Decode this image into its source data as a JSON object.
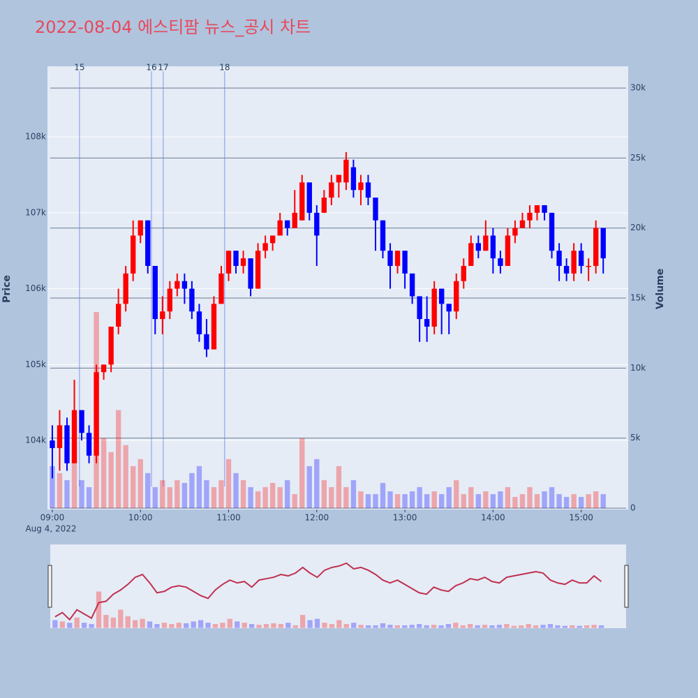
{
  "chart_data": {
    "type": "candlestick",
    "title": "2022-08-04 에스티팜 뉴스_공시 차트",
    "y_label": "Price",
    "y2_label": "Volume",
    "x_date_label": "Aug 4, 2022",
    "up_color": "#ff0000",
    "down_color": "#0000ff",
    "grid": true,
    "xlim": [
      -3.3,
      392
    ],
    "xticks": [
      {
        "value": 0,
        "label": "09:00"
      },
      {
        "value": 60,
        "label": "10:00"
      },
      {
        "value": 120,
        "label": "11:00"
      },
      {
        "value": 180,
        "label": "12:00"
      },
      {
        "value": 240,
        "label": "13:00"
      },
      {
        "value": 300,
        "label": "14:00"
      },
      {
        "value": 360,
        "label": "15:00"
      }
    ],
    "ylim": [
      103090,
      108930
    ],
    "yticks": [
      {
        "value": 104000,
        "label": "104k"
      },
      {
        "value": 105000,
        "label": "105k"
      },
      {
        "value": 106000,
        "label": "106k"
      },
      {
        "value": 107000,
        "label": "107k"
      },
      {
        "value": 108000,
        "label": "108k"
      }
    ],
    "y2lim": [
      -100,
      31550
    ],
    "y2ticks": [
      0,
      {
        "value": 5000,
        "label": "5k"
      },
      {
        "value": 10000,
        "label": "10k"
      },
      {
        "value": 15000,
        "label": "15k"
      },
      {
        "value": 20000,
        "label": "20k"
      },
      {
        "value": 25000,
        "label": "25k"
      },
      {
        "value": 30000,
        "label": "30k"
      }
    ],
    "news": [
      {
        "label": "15",
        "x": 18.5
      },
      {
        "label": "16",
        "x": 67.5
      },
      {
        "label": "17",
        "x": 75.5
      },
      {
        "label": "18",
        "x": 117.3
      }
    ],
    "x": [
      0,
      5,
      10,
      15,
      20,
      25,
      30,
      35,
      40,
      45,
      50,
      55,
      60,
      65,
      70,
      75,
      80,
      85,
      90,
      95,
      100,
      105,
      110,
      115,
      120,
      125,
      130,
      135,
      140,
      145,
      150,
      155,
      160,
      165,
      170,
      175,
      180,
      185,
      190,
      195,
      200,
      205,
      210,
      215,
      220,
      225,
      230,
      235,
      240,
      245,
      250,
      255,
      260,
      265,
      270,
      275,
      280,
      285,
      290,
      295,
      300,
      305,
      310,
      315,
      320,
      325,
      330,
      335,
      340,
      345,
      350,
      355,
      360,
      365,
      370,
      375
    ],
    "open": [
      104000,
      103900,
      104200,
      103700,
      104400,
      104100,
      103800,
      104900,
      105000,
      105500,
      105800,
      106200,
      106700,
      106900,
      106300,
      105600,
      105700,
      106000,
      106100,
      106000,
      105700,
      105400,
      105200,
      105800,
      106200,
      106500,
      106300,
      106400,
      106000,
      106500,
      106600,
      106700,
      106900,
      106800,
      106900,
      107400,
      107000,
      107000,
      107200,
      107400,
      107400,
      107600,
      107300,
      107400,
      107200,
      106900,
      106500,
      106300,
      106500,
      106200,
      105900,
      105600,
      105500,
      106000,
      105800,
      105700,
      106100,
      106300,
      106600,
      106500,
      106700,
      106400,
      106300,
      106700,
      106800,
      106900,
      107000,
      107100,
      107000,
      106500,
      106300,
      106200,
      106500,
      106300,
      106300,
      106800
    ],
    "high": [
      104200,
      104400,
      104300,
      104800,
      104400,
      104200,
      105000,
      105000,
      105500,
      106000,
      106300,
      106900,
      106900,
      106900,
      106300,
      105900,
      106100,
      106200,
      106200,
      106100,
      105800,
      105600,
      105900,
      106300,
      106500,
      106500,
      106500,
      106400,
      106600,
      106700,
      106700,
      107000,
      106900,
      107300,
      107500,
      107400,
      107100,
      107300,
      107500,
      107500,
      107800,
      107700,
      107500,
      107500,
      107200,
      106900,
      106600,
      106500,
      106500,
      106200,
      105900,
      105900,
      106100,
      106000,
      105800,
      106200,
      106400,
      106700,
      106700,
      106900,
      106800,
      106500,
      106800,
      106900,
      107000,
      107100,
      107100,
      107100,
      107000,
      106600,
      106400,
      106600,
      106600,
      106400,
      106900,
      106800
    ],
    "low": [
      103500,
      103600,
      103600,
      103700,
      104000,
      103700,
      103700,
      104800,
      104900,
      105400,
      105700,
      106100,
      106600,
      106200,
      105400,
      105400,
      105600,
      105900,
      105800,
      105600,
      105300,
      105100,
      105200,
      105800,
      106100,
      106200,
      106200,
      105900,
      106000,
      106400,
      106500,
      106700,
      106700,
      106800,
      106900,
      106900,
      106300,
      107000,
      107100,
      107200,
      107300,
      107200,
      107100,
      107100,
      106500,
      106400,
      106000,
      106200,
      106000,
      105800,
      105300,
      105300,
      105400,
      105400,
      105400,
      105600,
      106000,
      106300,
      106400,
      106500,
      106200,
      106200,
      106300,
      106600,
      106800,
      106800,
      106900,
      106900,
      106400,
      106100,
      106100,
      106100,
      106200,
      106100,
      106200,
      106200
    ],
    "close": [
      103900,
      104200,
      103700,
      104400,
      104100,
      103800,
      104900,
      105000,
      105500,
      105800,
      106200,
      106700,
      106900,
      106300,
      105600,
      105700,
      106000,
      106100,
      106000,
      105700,
      105400,
      105200,
      105800,
      106200,
      106500,
      106300,
      106400,
      106000,
      106500,
      106600,
      106700,
      106900,
      106800,
      107000,
      107400,
      107000,
      106700,
      107200,
      107400,
      107500,
      107700,
      107300,
      107400,
      107200,
      106900,
      106500,
      106300,
      106500,
      106200,
      105900,
      105600,
      105500,
      106000,
      105800,
      105700,
      106100,
      106300,
      106600,
      106500,
      106700,
      106400,
      106300,
      106700,
      106800,
      106900,
      107000,
      107100,
      107000,
      106500,
      106300,
      106200,
      106500,
      106300,
      106300,
      106800,
      106400
    ],
    "volume": [
      3000,
      2500,
      2000,
      4000,
      2000,
      1500,
      14000,
      5000,
      4000,
      7000,
      4500,
      3000,
      3500,
      2500,
      1500,
      2000,
      1500,
      2000,
      1800,
      2500,
      3000,
      2000,
      1500,
      2000,
      3500,
      2500,
      2000,
      1500,
      1200,
      1500,
      1800,
      1500,
      2000,
      1000,
      5000,
      3000,
      3500,
      2000,
      1500,
      3000,
      1500,
      2000,
      1200,
      1000,
      1000,
      1800,
      1200,
      1000,
      1000,
      1200,
      1500,
      1000,
      1200,
      1000,
      1500,
      2000,
      1000,
      1500,
      1000,
      1200,
      1000,
      1200,
      1500,
      800,
      1000,
      1500,
      1000,
      1200,
      1500,
      1000,
      800,
      1000,
      800,
      1000,
      1200,
      1000
    ]
  }
}
